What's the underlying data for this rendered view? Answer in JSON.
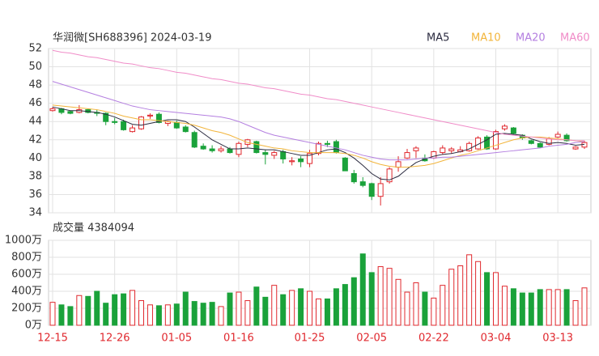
{
  "chart_data": {
    "type": "candlestick",
    "title": "华润微[SH688396] 2024-03-19",
    "categories": [
      "12-15",
      null,
      null,
      null,
      null,
      null,
      null,
      "12-26",
      null,
      null,
      null,
      null,
      null,
      null,
      "01-05",
      null,
      null,
      null,
      null,
      null,
      null,
      "01-16",
      null,
      null,
      null,
      null,
      null,
      null,
      null,
      "01-25",
      null,
      null,
      null,
      null,
      null,
      null,
      "02-05",
      null,
      null,
      null,
      null,
      null,
      null,
      "02-22",
      null,
      null,
      null,
      null,
      null,
      null,
      "03-04",
      null,
      null,
      null,
      null,
      null,
      null,
      "03-13",
      null,
      null,
      null
    ],
    "open": [
      45.2,
      45.4,
      45.1,
      45.0,
      45.3,
      45.0,
      44.9,
      44.0,
      44.0,
      42.9,
      43.2,
      44.6,
      44.8,
      43.8,
      43.9,
      43.4,
      42.8,
      41.3,
      41.0,
      40.8,
      41.0,
      40.4,
      41.5,
      41.8,
      40.6,
      40.3,
      40.7,
      39.6,
      39.9,
      39.4,
      40.5,
      41.6,
      41.8,
      40.0,
      38.3,
      37.4,
      37.2,
      35.8,
      37.4,
      39.0,
      40.0,
      40.8,
      40.0,
      40.0,
      40.6,
      40.8,
      40.7,
      40.8,
      41.0,
      42.3,
      41.0,
      43.2,
      43.3,
      42.5,
      41.9,
      41.6,
      41.5,
      42.3,
      42.5,
      41.0,
      41.2
    ],
    "high": [
      45.6,
      45.5,
      45.2,
      45.8,
      45.4,
      45.3,
      45.0,
      44.4,
      44.2,
      43.6,
      44.6,
      44.9,
      45.0,
      44.1,
      44.1,
      43.6,
      43.0,
      41.6,
      41.4,
      41.3,
      41.2,
      41.8,
      42.1,
      41.9,
      40.9,
      40.8,
      40.9,
      40.1,
      40.2,
      40.9,
      41.8,
      41.9,
      42.0,
      40.1,
      38.7,
      37.9,
      37.3,
      37.9,
      39.0,
      40.2,
      41.0,
      41.3,
      40.4,
      40.8,
      41.4,
      41.2,
      41.3,
      41.8,
      42.4,
      42.5,
      43.1,
      43.7,
      43.4,
      42.6,
      42.0,
      41.7,
      42.3,
      42.9,
      42.7,
      41.3,
      41.9
    ],
    "low": [
      45.1,
      44.8,
      44.8,
      44.9,
      44.9,
      44.6,
      43.6,
      43.7,
      43.0,
      42.8,
      43.1,
      44.3,
      43.8,
      43.5,
      43.2,
      42.8,
      41.1,
      40.9,
      40.6,
      40.6,
      40.5,
      40.1,
      41.2,
      40.5,
      39.3,
      39.9,
      39.4,
      39.2,
      39.0,
      39.0,
      40.3,
      41.2,
      40.5,
      38.6,
      37.2,
      36.8,
      35.4,
      34.8,
      37.2,
      38.5,
      39.9,
      40.0,
      39.6,
      39.9,
      40.4,
      40.5,
      40.6,
      40.7,
      40.9,
      40.9,
      40.9,
      43.0,
      42.6,
      42.0,
      41.5,
      41.1,
      41.4,
      42.2,
      41.8,
      40.9,
      41.0
    ],
    "close": [
      45.4,
      45.0,
      44.9,
      45.3,
      45.0,
      44.9,
      44.0,
      43.9,
      43.1,
      43.3,
      44.5,
      44.7,
      43.9,
      44.0,
      43.3,
      42.9,
      41.2,
      41.0,
      40.8,
      41.0,
      40.6,
      41.6,
      42.0,
      40.6,
      40.4,
      40.6,
      39.9,
      39.7,
      39.6,
      40.5,
      41.6,
      41.5,
      40.6,
      38.6,
      37.4,
      37.0,
      35.8,
      37.2,
      38.8,
      39.6,
      40.6,
      41.1,
      39.7,
      40.7,
      41.1,
      41.0,
      40.9,
      41.6,
      42.2,
      41.0,
      42.9,
      43.5,
      42.7,
      42.2,
      41.6,
      41.2,
      42.1,
      42.6,
      41.9,
      41.2,
      41.7
    ],
    "up_color": "#e0282e",
    "down_color": "#1aa23a",
    "series": [
      {
        "name": "MA5",
        "color": "#2b2b40",
        "values": [
          45.6,
          45.4,
          45.2,
          45.2,
          45.1,
          45.0,
          44.8,
          44.5,
          44.1,
          43.7,
          43.6,
          43.8,
          44.0,
          44.2,
          44.2,
          44.0,
          43.4,
          42.7,
          42.0,
          41.5,
          41.0,
          41.0,
          41.1,
          41.0,
          40.9,
          40.9,
          40.7,
          40.5,
          40.3,
          40.3,
          40.6,
          40.9,
          41.0,
          40.6,
          40.0,
          39.2,
          38.3,
          37.7,
          37.6,
          38.0,
          38.8,
          39.5,
          39.9,
          40.2,
          40.4,
          40.5,
          40.7,
          41.0,
          41.5,
          42.0,
          42.6,
          42.7,
          42.6,
          42.5,
          42.1,
          41.8,
          41.6,
          41.7,
          41.6,
          41.4,
          41.5
        ]
      },
      {
        "name": "MA10",
        "color": "#f2b43a",
        "values": [
          45.8,
          45.7,
          45.6,
          45.5,
          45.4,
          45.3,
          45.1,
          44.9,
          44.6,
          44.4,
          44.2,
          44.2,
          44.1,
          44.0,
          43.9,
          43.8,
          43.6,
          43.3,
          43.0,
          42.8,
          42.5,
          42.1,
          41.7,
          41.5,
          41.3,
          41.1,
          41.0,
          40.8,
          40.7,
          40.6,
          40.6,
          40.6,
          40.6,
          40.5,
          40.3,
          40.0,
          39.6,
          39.3,
          39.1,
          39.0,
          39.0,
          39.1,
          39.2,
          39.4,
          39.7,
          40.0,
          40.3,
          40.5,
          40.8,
          41.1,
          41.4,
          41.7,
          42.0,
          42.2,
          42.3,
          42.3,
          42.2,
          42.1,
          42.0,
          41.9,
          41.8
        ]
      },
      {
        "name": "MA20",
        "color": "#b47fe0",
        "values": [
          48.4,
          48.1,
          47.8,
          47.5,
          47.2,
          46.9,
          46.6,
          46.3,
          46.0,
          45.7,
          45.5,
          45.3,
          45.2,
          45.1,
          45.0,
          44.9,
          44.8,
          44.7,
          44.6,
          44.5,
          44.3,
          44.0,
          43.6,
          43.2,
          42.8,
          42.5,
          42.3,
          42.1,
          41.9,
          41.7,
          41.5,
          41.3,
          41.1,
          40.9,
          40.6,
          40.3,
          40.1,
          39.9,
          39.8,
          39.8,
          39.8,
          39.9,
          40.0,
          40.0,
          40.1,
          40.1,
          40.2,
          40.3,
          40.4,
          40.5,
          40.6,
          40.7,
          40.8,
          40.9,
          41.0,
          41.1,
          41.3,
          41.4,
          41.5,
          41.7,
          41.8
        ]
      },
      {
        "name": "MA60",
        "color": "#f08cc8",
        "values": [
          51.8,
          51.6,
          51.5,
          51.3,
          51.1,
          51.0,
          50.8,
          50.6,
          50.4,
          50.3,
          50.1,
          49.9,
          49.8,
          49.6,
          49.4,
          49.3,
          49.1,
          48.9,
          48.7,
          48.6,
          48.4,
          48.2,
          48.1,
          47.9,
          47.7,
          47.6,
          47.4,
          47.2,
          47.0,
          46.9,
          46.7,
          46.5,
          46.4,
          46.2,
          46.0,
          45.8,
          45.6,
          45.4,
          45.2,
          45.0,
          44.8,
          44.6,
          44.4,
          44.2,
          44.0,
          43.8,
          43.6,
          43.4,
          43.2,
          43.0,
          42.8,
          42.6,
          42.5,
          42.4,
          42.3,
          42.2,
          42.1,
          42.0,
          42.0,
          41.9,
          41.9
        ]
      }
    ],
    "ylim": [
      34,
      52
    ],
    "yticks": [
      34,
      36,
      38,
      40,
      42,
      44,
      46,
      48,
      50,
      52
    ],
    "volume_title": "成交量 4384094",
    "volume": [
      270,
      240,
      220,
      350,
      340,
      400,
      260,
      360,
      370,
      410,
      290,
      240,
      230,
      240,
      250,
      390,
      280,
      260,
      270,
      220,
      380,
      390,
      290,
      450,
      330,
      470,
      360,
      410,
      430,
      400,
      310,
      310,
      430,
      480,
      560,
      840,
      620,
      690,
      670,
      540,
      390,
      500,
      390,
      320,
      470,
      660,
      700,
      830,
      750,
      620,
      620,
      460,
      430,
      380,
      380,
      420,
      420,
      420,
      420,
      290,
      440
    ],
    "volume_ylim": [
      0,
      1000
    ],
    "volume_yticks": [
      {
        "value": 0,
        "label": "0万"
      },
      {
        "value": 200,
        "label": "200万"
      },
      {
        "value": 400,
        "label": "400万"
      },
      {
        "value": 600,
        "label": "600万"
      },
      {
        "value": 800,
        "label": "800万"
      },
      {
        "value": 1000,
        "label": "1000万"
      }
    ],
    "grid": true
  }
}
